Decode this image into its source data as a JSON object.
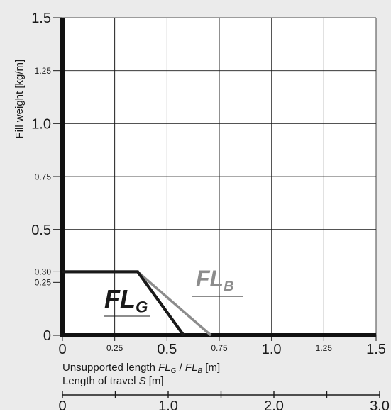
{
  "chart_data": {
    "type": "line",
    "ylabel": "Fill weight [kg/m]",
    "xlabel_parts": [
      "Unsupported length ",
      "FL",
      "G",
      " / ",
      "FL",
      "B",
      " [m]"
    ],
    "xlabel2_parts": [
      "Length of travel ",
      "S",
      " [m]"
    ],
    "y_ticks": [
      {
        "value": 0,
        "label": "0",
        "major": true
      },
      {
        "value": 0.25,
        "label": "0.25",
        "major": false
      },
      {
        "value": 0.3,
        "label": "0.30",
        "major": false
      },
      {
        "value": 0.5,
        "label": "0.5",
        "major": true
      },
      {
        "value": 0.75,
        "label": "0.75",
        "major": false
      },
      {
        "value": 1.0,
        "label": "1.0",
        "major": true
      },
      {
        "value": 1.25,
        "label": "1.25",
        "major": false
      },
      {
        "value": 1.5,
        "label": "1.5",
        "major": true
      }
    ],
    "x_ticks": [
      {
        "value": 0,
        "label": "0",
        "major": true
      },
      {
        "value": 0.25,
        "label": "0.25",
        "major": false
      },
      {
        "value": 0.5,
        "label": "0.5",
        "major": true
      },
      {
        "value": 0.75,
        "label": "0.75",
        "major": false
      },
      {
        "value": 1.0,
        "label": "1.0",
        "major": true
      },
      {
        "value": 1.25,
        "label": "1.25",
        "major": false
      },
      {
        "value": 1.5,
        "label": "1.5",
        "major": true
      }
    ],
    "x2_ticks": [
      {
        "value": 0,
        "label": "0"
      },
      {
        "value": 1.0,
        "label": "1.0"
      },
      {
        "value": 2.0,
        "label": "2.0"
      },
      {
        "value": 3.0,
        "label": "3.0"
      }
    ],
    "x2_minor_ticks": [
      0.5,
      1.5,
      2.5
    ],
    "xlim": [
      0,
      1.5
    ],
    "ylim": [
      0,
      1.5
    ],
    "x2lim": [
      0,
      3.0
    ],
    "grid": true,
    "series": [
      {
        "name_main": "FL",
        "name_sub": "G",
        "color": "#1a1a1a",
        "points": [
          [
            0,
            0.3
          ],
          [
            0.36,
            0.3
          ],
          [
            0.58,
            0
          ]
        ]
      },
      {
        "name_main": "FL",
        "name_sub": "B",
        "color": "#8c8c8c",
        "points": [
          [
            0.36,
            0.3
          ],
          [
            0.71,
            0
          ]
        ]
      }
    ]
  }
}
